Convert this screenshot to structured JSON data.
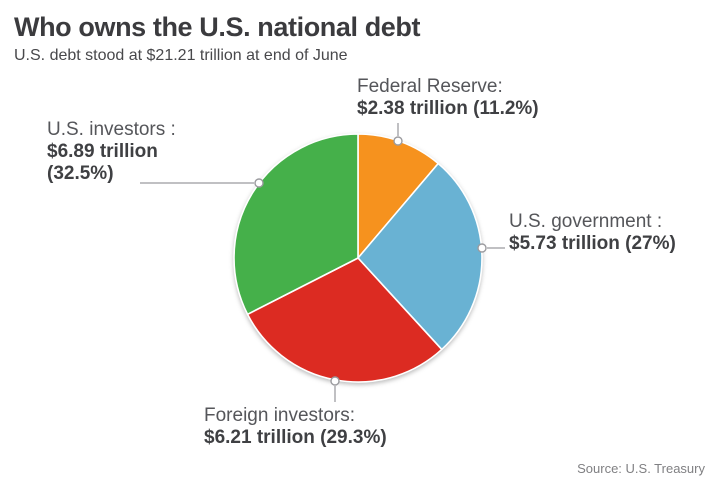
{
  "header": {
    "title": "Who owns the U.S. national debt",
    "subtitle": "U.S. debt stood at $21.21 trillion at end of June"
  },
  "footer": {
    "source": "Source: U.S. Treasury"
  },
  "colors": {
    "orange": "#F6921E",
    "blue": "#69B2D3",
    "red": "#DC2B22",
    "green": "#45B04A",
    "title_text": "#3B3B3E",
    "label_text": "#55565A",
    "value_text": "#3F4043",
    "connector_line": "#ABABAF",
    "dot_stroke": "#9B9B9F",
    "source_text": "#808083"
  },
  "chart_data": {
    "type": "pie",
    "title": "Who owns the U.S. national debt",
    "subtitle": "U.S. debt stood at $21.21 trillion at end of June",
    "source": "Source: U.S. Treasury",
    "unit": "USD trillions",
    "total_display": "$21.21 trillion",
    "direction": "clockwise",
    "start_angle_deg_from_top": 0,
    "legend_position": "callouts",
    "slices": [
      {
        "name": "Federal Reserve",
        "value": 2.38,
        "percent": 11.2,
        "color": "#F6921E"
      },
      {
        "name": "U.S. government",
        "value": 5.73,
        "percent": 27.0,
        "color": "#69B2D3"
      },
      {
        "name": "Foreign investors",
        "value": 6.21,
        "percent": 29.3,
        "color": "#DC2B22"
      },
      {
        "name": "U.S. investors",
        "value": 6.89,
        "percent": 32.5,
        "color": "#45B04A"
      }
    ]
  },
  "callouts": {
    "federal_reserve": {
      "line1": "Federal Reserve:",
      "line2": "$2.38 trillion (11.2%)"
    },
    "us_investors": {
      "line1": "U.S. investors :",
      "line2": "$6.89 trillion",
      "line3": "(32.5%)"
    },
    "us_government": {
      "line1": "U.S. government :",
      "line2": "$5.73 trillion (27%)"
    },
    "foreign_investors": {
      "line1": "Foreign investors:",
      "line2": "$6.21 trillion (29.3%)"
    }
  }
}
